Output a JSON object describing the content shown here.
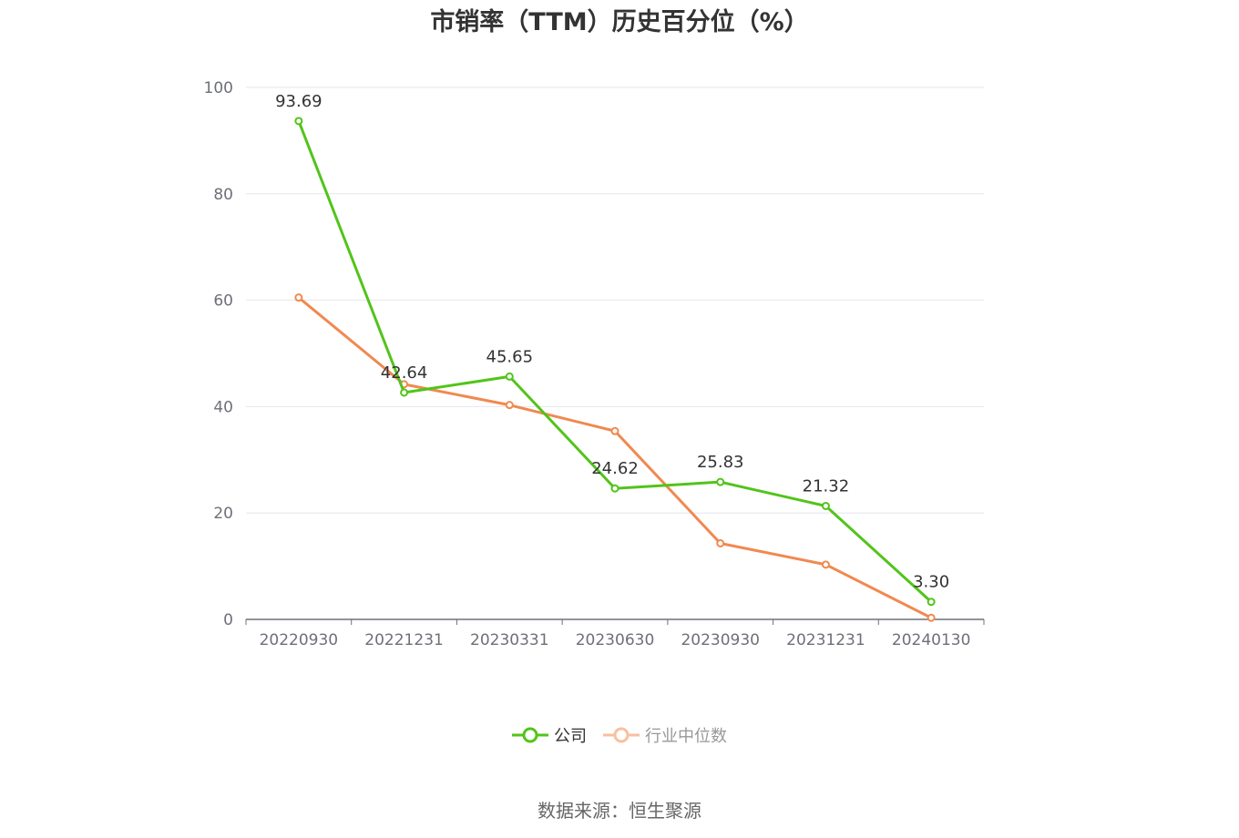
{
  "chart_data": {
    "type": "line",
    "title": "市销率（TTM）历史百分位（%）",
    "categories": [
      "20220930",
      "20221231",
      "20230331",
      "20230630",
      "20230930",
      "20231231",
      "20240130"
    ],
    "series": [
      {
        "name": "公司",
        "color": "#52c41a",
        "values": [
          93.69,
          42.64,
          45.65,
          24.62,
          25.83,
          21.32,
          3.3
        ],
        "labels": [
          "93.69",
          "42.64",
          "45.65",
          "24.62",
          "25.83",
          "21.32",
          "3.30"
        ],
        "show_labels": true
      },
      {
        "name": "行业中位数",
        "color": "#f0894f",
        "values": [
          60.5,
          44.2,
          40.3,
          35.4,
          14.3,
          10.3,
          0.3
        ],
        "show_labels": false
      }
    ],
    "ylim": [
      0,
      100
    ],
    "yticks": [
      0,
      20,
      40,
      60,
      80,
      100
    ],
    "grid": true,
    "legend_position": "bottom"
  },
  "source_note": "数据来源：恒生聚源"
}
